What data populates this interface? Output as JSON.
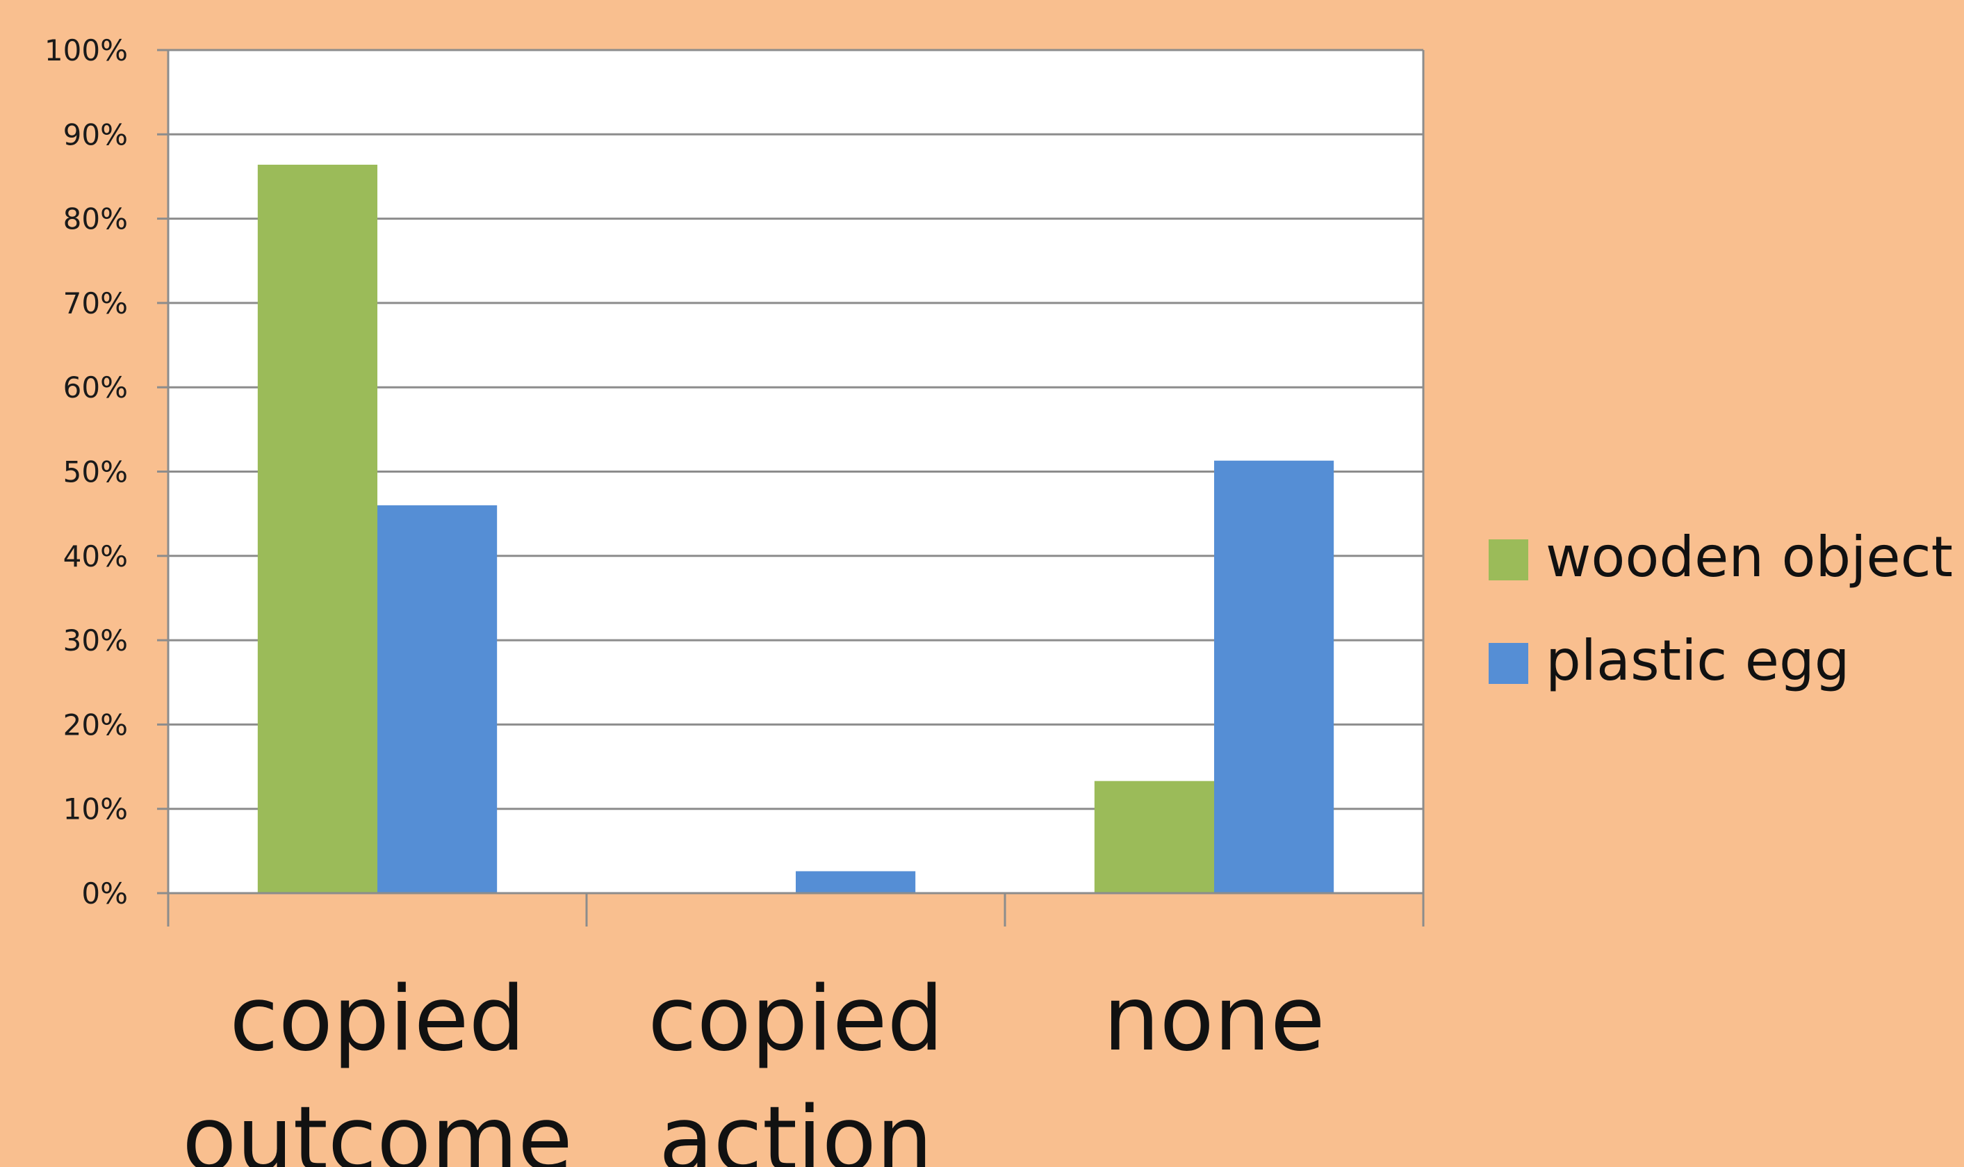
{
  "chart_data": {
    "type": "bar",
    "title": "",
    "xlabel": "",
    "ylabel": "",
    "ylim": [
      0,
      1
    ],
    "y_tick_format": "percent",
    "y_ticks": [
      "0%",
      "10%",
      "20%",
      "30%",
      "40%",
      "50%",
      "60%",
      "70%",
      "80%",
      "90%",
      "100%"
    ],
    "categories": [
      [
        "copied",
        "outcome"
      ],
      [
        "copied",
        "action"
      ],
      [
        "none"
      ]
    ],
    "series": [
      {
        "name": "wooden object",
        "color": "#9BBB59",
        "values": [
          0.864,
          0.0,
          0.133
        ]
      },
      {
        "name": "plastic egg",
        "color": "#558ED5",
        "values": [
          0.46,
          0.026,
          0.513
        ]
      }
    ],
    "grid": true,
    "legend_position": "right",
    "colors": {
      "background": "#F9BF8F",
      "plot_background": "#FFFFFF",
      "gridline": "#8C8C8C"
    }
  }
}
